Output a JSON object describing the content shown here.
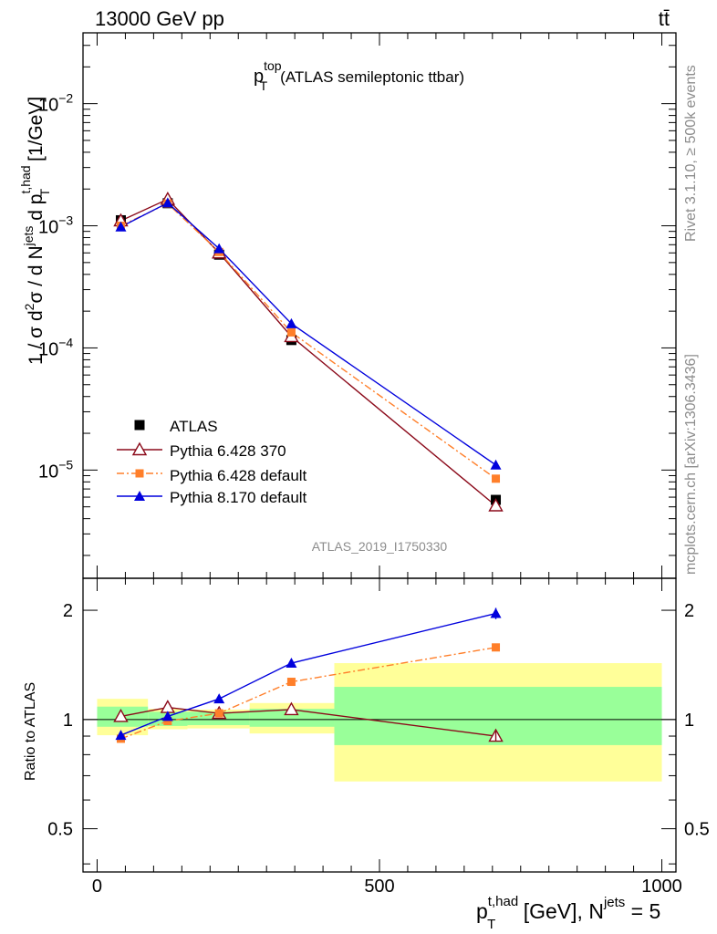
{
  "header": {
    "left": "13000 GeV pp",
    "right": "tt̄"
  },
  "side_labels": {
    "rivet": "Rivet 3.1.10, ≥ 500k events",
    "mcplots": "mcplots.cern.ch [arXiv:1306.3436]"
  },
  "chart_data": {
    "type": "line",
    "title_main": "p",
    "title_sup": "top",
    "title_sub": "T",
    "title_rest": "(ATLAS semileptonic ttbar)",
    "watermark": "ATLAS_2019_I1750330",
    "ylabel": {
      "a": "1 / σ d",
      "a_sup": "2",
      "b": "σ /  d N",
      "b_sup": "jets",
      "c": " d p",
      "c_sup": "t,had",
      "c_sub": "T",
      "d": " [1/GeV]"
    },
    "ratio_ylabel": "Ratio to ATLAS",
    "xlabel": {
      "main": "p",
      "sup": "t,had",
      "sub": "T",
      "rest": " [GeV], N",
      "sup2": "jets",
      "tail": " = 5"
    },
    "x_range": [
      -25,
      1025
    ],
    "y_range_log": [
      1.3e-06,
      0.038
    ],
    "ratio_range": [
      0.38,
      2.45
    ],
    "x_ticks": [
      {
        "value": 0,
        "label": "0"
      },
      {
        "value": 500,
        "label": "500"
      },
      {
        "value": 1000,
        "label": "1000"
      }
    ],
    "y_ticks": [
      {
        "exp": -2,
        "base": "10",
        "sup": "−2"
      },
      {
        "exp": -3,
        "base": "10",
        "sup": "−3"
      },
      {
        "exp": -4,
        "base": "10",
        "sup": "−4"
      },
      {
        "exp": -5,
        "base": "10",
        "sup": "−5"
      }
    ],
    "ratio_ticks": [
      {
        "value": 2,
        "label": "2"
      },
      {
        "value": 1,
        "label": "1"
      },
      {
        "value": 0.5,
        "label": "0.5"
      }
    ],
    "x": [
      42,
      125,
      216,
      344,
      706
    ],
    "bins": [
      [
        0,
        90
      ],
      [
        90,
        160
      ],
      [
        160,
        270
      ],
      [
        270,
        420
      ],
      [
        420,
        1000
      ]
    ],
    "band_inner": [
      [
        0.955,
        1.085
      ],
      [
        0.96,
        1.05
      ],
      [
        0.965,
        1.05
      ],
      [
        0.955,
        1.07
      ],
      [
        0.85,
        1.23
      ]
    ],
    "band_outer": [
      [
        0.905,
        1.14
      ],
      [
        0.94,
        1.07
      ],
      [
        0.945,
        1.065
      ],
      [
        0.915,
        1.11
      ],
      [
        0.675,
        1.43
      ]
    ],
    "series": [
      {
        "name": "ATLAS",
        "color": "#000000",
        "marker": "square",
        "dash": "",
        "values": [
          0.00111,
          0.00153,
          0.00058,
          0.000116,
          5.7e-06
        ],
        "ratio": [
          1,
          1,
          1,
          1,
          1
        ]
      },
      {
        "name": "Pythia 6.428 370",
        "color": "#8b0a1a",
        "marker": "triangle-open",
        "dash": "",
        "values": [
          0.0011,
          0.00165,
          0.0006,
          0.000124,
          5.1e-06
        ],
        "ratio": [
          1.02,
          1.08,
          1.04,
          1.065,
          0.9
        ]
      },
      {
        "name": "Pythia 6.428 default",
        "color": "#ff7f2a",
        "marker": "square-small",
        "dash": "8 3 2 3",
        "values": [
          0.001,
          0.00152,
          0.00061,
          0.000134,
          8.5e-06
        ],
        "ratio": [
          0.885,
          0.99,
          1.04,
          1.27,
          1.58
        ]
      },
      {
        "name": "Pythia 8.170 default",
        "color": "#0000dd",
        "marker": "triangle",
        "dash": "",
        "values": [
          0.00098,
          0.00154,
          0.00065,
          0.000158,
          1.1e-05
        ],
        "ratio": [
          0.905,
          1.02,
          1.14,
          1.43,
          1.96
        ]
      }
    ],
    "ratio_errors": [
      {
        "series": 1,
        "index": 4,
        "err": 0.03
      },
      {
        "series": 2,
        "index": 4,
        "err": 0.03
      },
      {
        "series": 3,
        "index": 4,
        "err": 0.07
      },
      {
        "series": 3,
        "index": 3,
        "err": 0.03
      }
    ]
  }
}
